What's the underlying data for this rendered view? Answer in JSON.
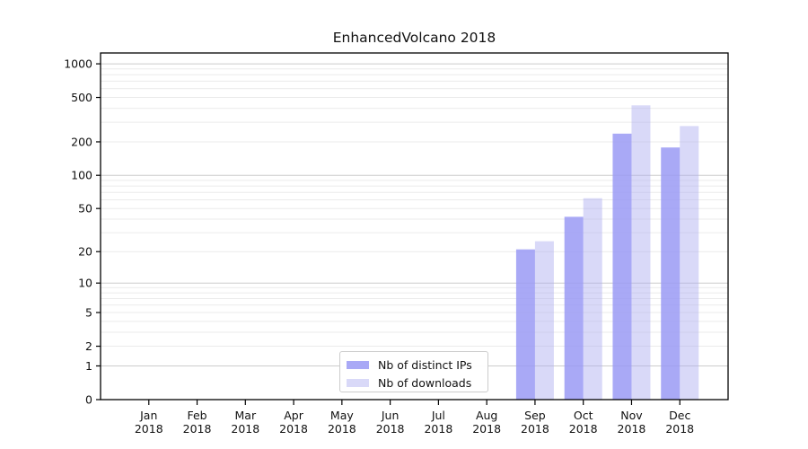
{
  "chart_data": {
    "type": "bar",
    "title": "EnhancedVolcano 2018",
    "categories": [
      "Jan 2018",
      "Feb 2018",
      "Mar 2018",
      "Apr 2018",
      "May 2018",
      "Jun 2018",
      "Jul 2018",
      "Aug 2018",
      "Sep 2018",
      "Oct 2018",
      "Nov 2018",
      "Dec 2018"
    ],
    "series": [
      {
        "name": "Nb of distinct IPs",
        "color": "#9a9af4",
        "opacity": 0.85,
        "values": [
          0,
          0,
          0,
          0,
          0,
          0,
          0,
          0,
          21,
          42,
          237,
          178
        ]
      },
      {
        "name": "Nb of downloads",
        "color": "#ababef",
        "opacity": 0.45,
        "values": [
          0,
          0,
          0,
          0,
          0,
          0,
          0,
          0,
          25,
          62,
          425,
          277
        ]
      }
    ],
    "xlabel": "",
    "ylabel": "",
    "yscale": "log1p",
    "ylim": [
      0,
      1250
    ],
    "yticks": [
      0,
      1,
      2,
      5,
      10,
      20,
      50,
      100,
      200,
      500,
      1000
    ],
    "grid": {
      "on": true,
      "minor_color": "#ebebeb",
      "major_color": "#cccccc",
      "major_at": [
        1,
        10,
        100,
        1000
      ]
    },
    "legend_position": "lower center-left inside plot",
    "axis_color": "#000000",
    "tick_label_color": "#111111"
  }
}
